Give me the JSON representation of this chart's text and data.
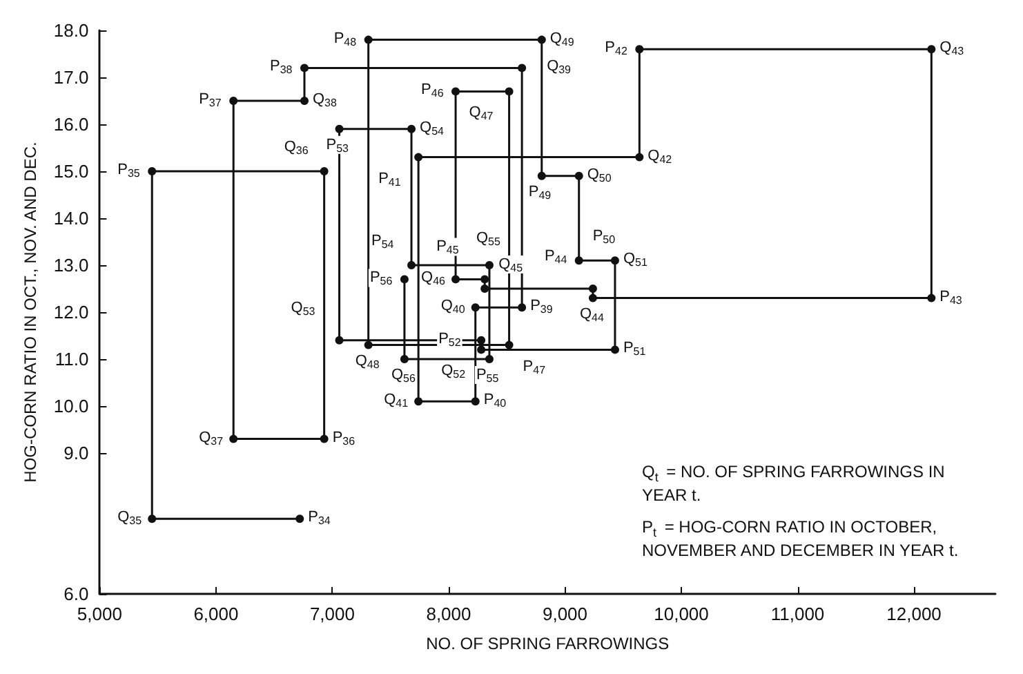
{
  "chart_data": {
    "type": "line",
    "xlabel": "NO. OF SPRING FARROWINGS",
    "ylabel": "HOG-CORN RATIO IN OCT., NOV. AND DEC.",
    "x": [
      6720,
      5450,
      5450,
      6930,
      6930,
      6150,
      6150,
      6760,
      6760,
      8630,
      8630,
      8230,
      8230,
      7740,
      7740,
      9640,
      9640,
      12150,
      12150,
      9240,
      9240,
      8310,
      8310,
      8060,
      8060,
      8520,
      8520,
      7310,
      7310,
      8800,
      8800,
      9120,
      9120,
      9430,
      9430,
      8280,
      8280,
      7060,
      7060,
      7680,
      7680,
      8350,
      8350,
      7620,
      7620
    ],
    "values": [
      7.6,
      7.6,
      15.0,
      15.0,
      9.3,
      9.3,
      16.5,
      16.5,
      17.2,
      17.2,
      12.1,
      12.1,
      10.1,
      10.1,
      15.3,
      15.3,
      17.6,
      17.6,
      12.3,
      12.3,
      12.5,
      12.5,
      12.7,
      12.7,
      16.7,
      16.7,
      11.3,
      11.3,
      17.8,
      17.8,
      14.9,
      14.9,
      13.1,
      13.1,
      11.2,
      11.2,
      11.4,
      11.4,
      15.9,
      15.9,
      13.0,
      13.0,
      11.0,
      11.0,
      12.7
    ],
    "color": "#111111",
    "marker": "circle",
    "line_style": "solid",
    "grid": false,
    "xlim": [
      5000,
      12700
    ],
    "xticks": [
      {
        "value": 5000,
        "label": "5,000"
      },
      {
        "value": 6000,
        "label": "6,000"
      },
      {
        "value": 7000,
        "label": "7,000"
      },
      {
        "value": 8000,
        "label": "8,000"
      },
      {
        "value": 9000,
        "label": "9,000"
      },
      {
        "value": 10000,
        "label": "10,000"
      },
      {
        "value": 11000,
        "label": "11,000"
      },
      {
        "value": 12000,
        "label": "12,000"
      }
    ],
    "ylim": [
      6,
      18
    ],
    "yticks": [
      {
        "value": 6,
        "label": "6.0"
      },
      {
        "value": 9,
        "label": "9.0"
      },
      {
        "value": 10,
        "label": "10.0"
      },
      {
        "value": 11,
        "label": "11.0"
      },
      {
        "value": 12,
        "label": "12.0"
      },
      {
        "value": 13,
        "label": "13.0"
      },
      {
        "value": 14,
        "label": "14.0"
      },
      {
        "value": 15,
        "label": "15.0"
      },
      {
        "value": 16,
        "label": "16.0"
      },
      {
        "value": 17,
        "label": "17.0"
      },
      {
        "value": 18,
        "label": "18.0"
      }
    ],
    "annotations": [
      "Q$_{t}$ = NO. OF SPRING FARROWINGS IN YEAR t.",
      "P$_{t}$ = HOG-CORN RATIO IN OCTOBER, NOVEMBER AND DECEMBER IN YEAR t.",
      {
        "text": "P$_{34}$",
        "x": 6720,
        "y": 7.6
      },
      {
        "text": "Q$_{35}$",
        "x": 5450,
        "y": 7.6
      },
      {
        "text": "P$_{35}$",
        "x": 5450,
        "y": 15.0
      },
      {
        "text": "Q$_{36}$",
        "x": 6930,
        "y": 15.0
      },
      {
        "text": "P$_{36}$",
        "x": 6930,
        "y": 9.3
      },
      {
        "text": "Q$_{37}$",
        "x": 6150,
        "y": 9.3
      },
      {
        "text": "P$_{37}$",
        "x": 6150,
        "y": 16.5
      },
      {
        "text": "Q$_{38}$",
        "x": 6760,
        "y": 16.5
      },
      {
        "text": "P$_{38}$",
        "x": 6760,
        "y": 17.2
      },
      {
        "text": "Q$_{39}$",
        "x": 8630,
        "y": 17.2
      },
      {
        "text": "P$_{39}$",
        "x": 8630,
        "y": 12.1
      },
      {
        "text": "Q$_{40}$",
        "x": 8230,
        "y": 12.1
      },
      {
        "text": "P$_{40}$",
        "x": 8230,
        "y": 10.1
      },
      {
        "text": "Q$_{41}$",
        "x": 7740,
        "y": 10.1
      },
      {
        "text": "P$_{41}$",
        "x": 7740,
        "y": 15.3
      },
      {
        "text": "Q$_{42}$",
        "x": 9640,
        "y": 15.3
      },
      {
        "text": "P$_{42}$",
        "x": 9640,
        "y": 17.6
      },
      {
        "text": "Q$_{43}$",
        "x": 12150,
        "y": 17.6
      },
      {
        "text": "P$_{43}$",
        "x": 12150,
        "y": 12.3
      },
      {
        "text": "Q$_{44}$",
        "x": 9240,
        "y": 12.3
      },
      {
        "text": "P$_{44}$",
        "x": 9240,
        "y": 12.5
      },
      {
        "text": "Q$_{45}$",
        "x": 8310,
        "y": 12.5
      },
      {
        "text": "P$_{45}$",
        "x": 8310,
        "y": 12.7
      },
      {
        "text": "Q$_{46}$",
        "x": 8060,
        "y": 12.7
      },
      {
        "text": "P$_{46}$",
        "x": 8060,
        "y": 16.7
      },
      {
        "text": "Q$_{47}$",
        "x": 8520,
        "y": 16.7
      },
      {
        "text": "P$_{47}$",
        "x": 8520,
        "y": 11.3
      },
      {
        "text": "Q$_{48}$",
        "x": 7310,
        "y": 11.3
      },
      {
        "text": "P$_{48}$",
        "x": 7310,
        "y": 17.8
      },
      {
        "text": "Q$_{49}$",
        "x": 8800,
        "y": 17.8
      },
      {
        "text": "P$_{49}$",
        "x": 8800,
        "y": 14.9
      },
      {
        "text": "Q$_{50}$",
        "x": 9120,
        "y": 14.9
      },
      {
        "text": "P$_{50}$",
        "x": 9120,
        "y": 13.1
      },
      {
        "text": "Q$_{51}$",
        "x": 9430,
        "y": 13.1
      },
      {
        "text": "P$_{51}$",
        "x": 9430,
        "y": 11.2
      },
      {
        "text": "Q$_{52}$",
        "x": 8280,
        "y": 11.2
      },
      {
        "text": "P$_{52}$",
        "x": 8280,
        "y": 11.4
      },
      {
        "text": "Q$_{53}$",
        "x": 7060,
        "y": 11.4
      },
      {
        "text": "P$_{53}$",
        "x": 7060,
        "y": 15.9
      },
      {
        "text": "Q$_{54}$",
        "x": 7680,
        "y": 15.9
      },
      {
        "text": "P$_{54}$",
        "x": 7680,
        "y": 13.0
      },
      {
        "text": "Q$_{55}$",
        "x": 8350,
        "y": 13.0
      },
      {
        "text": "P$_{55}$",
        "x": 8350,
        "y": 11.0
      },
      {
        "text": "Q$_{56}$",
        "x": 7620,
        "y": 11.0
      },
      {
        "text": "P$_{56}$",
        "x": 7620,
        "y": 12.7
      }
    ]
  }
}
